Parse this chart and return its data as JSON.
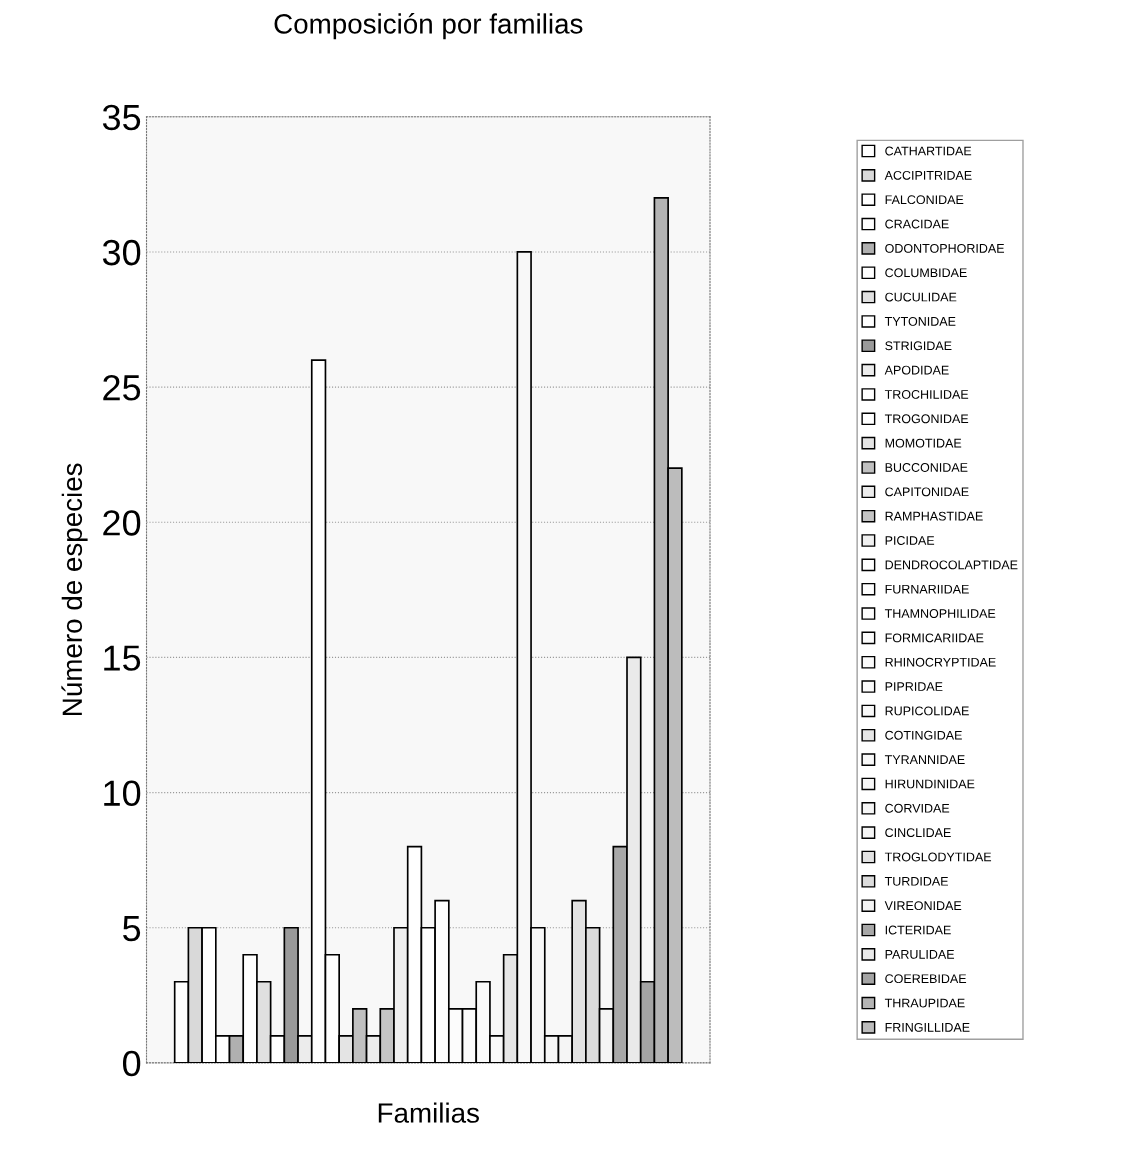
{
  "chart_data": {
    "type": "bar",
    "title": "Composición por familias",
    "xlabel": "Familias",
    "ylabel": "Número de especies",
    "categories": [
      null
    ],
    "ylim": [
      0,
      35
    ],
    "yticks": [
      0,
      5,
      10,
      15,
      20,
      25,
      30,
      35
    ],
    "grid": "y",
    "legend": "right",
    "series": [
      {
        "name": "CATHARTIDAE",
        "color": "#ffffff",
        "values": [
          3
        ]
      },
      {
        "name": "ACCIPITRIDAE",
        "color": "#d9d9d9",
        "values": [
          5
        ]
      },
      {
        "name": "FALCONIDAE",
        "color": "#ffffff",
        "values": [
          5
        ]
      },
      {
        "name": "CRACIDAE",
        "color": "#ffffff",
        "values": [
          1
        ]
      },
      {
        "name": "ODONTOPHORIDAE",
        "color": "#b0b0b0",
        "values": [
          1
        ]
      },
      {
        "name": "COLUMBIDAE",
        "color": "#ffffff",
        "values": [
          4
        ]
      },
      {
        "name": "CUCULIDAE",
        "color": "#e0e0e0",
        "values": [
          3
        ]
      },
      {
        "name": "TYTONIDAE",
        "color": "#ffffff",
        "values": [
          1
        ]
      },
      {
        "name": "STRIGIDAE",
        "color": "#9a9a9a",
        "values": [
          5
        ]
      },
      {
        "name": "APODIDAE",
        "color": "#ececec",
        "values": [
          1
        ]
      },
      {
        "name": "TROCHILIDAE",
        "color": "#ffffff",
        "values": [
          26
        ]
      },
      {
        "name": "TROGONIDAE",
        "color": "#ffffff",
        "values": [
          4
        ]
      },
      {
        "name": "MOMOTIDAE",
        "color": "#e4e4e4",
        "values": [
          1
        ]
      },
      {
        "name": "BUCCONIDAE",
        "color": "#c0c0c0",
        "values": [
          2
        ]
      },
      {
        "name": "CAPITONIDAE",
        "color": "#ececec",
        "values": [
          1
        ]
      },
      {
        "name": "RAMPHASTIDAE",
        "color": "#c4c4c4",
        "values": [
          2
        ]
      },
      {
        "name": "PICIDAE",
        "color": "#f0f0f0",
        "values": [
          5
        ]
      },
      {
        "name": "DENDROCOLAPTIDAE",
        "color": "#ffffff",
        "values": [
          8
        ]
      },
      {
        "name": "FURNARIIDAE",
        "color": "#fefefe",
        "values": [
          5
        ]
      },
      {
        "name": "THAMNOPHILIDAE",
        "color": "#fdfdfd",
        "values": [
          6
        ]
      },
      {
        "name": "FORMICARIIDAE",
        "color": "#fcfcfc",
        "values": [
          2
        ]
      },
      {
        "name": "RHINOCRYPTIDAE",
        "color": "#fbfbfb",
        "values": [
          2
        ]
      },
      {
        "name": "PIPRIDAE",
        "color": "#fafafa",
        "values": [
          3
        ]
      },
      {
        "name": "RUPICOLIDAE",
        "color": "#f9f9f9",
        "values": [
          1
        ]
      },
      {
        "name": "COTINGIDAE",
        "color": "#e6e6e6",
        "values": [
          4
        ]
      },
      {
        "name": "TYRANNIDAE",
        "color": "#f8f8f8",
        "values": [
          30
        ]
      },
      {
        "name": "HIRUNDINIDAE",
        "color": "#f7f7f7",
        "values": [
          5
        ]
      },
      {
        "name": "CORVIDAE",
        "color": "#f6f6f6",
        "values": [
          1
        ]
      },
      {
        "name": "CINCLIDAE",
        "color": "#f5f5f5",
        "values": [
          1
        ]
      },
      {
        "name": "TROGLODYTIDAE",
        "color": "#e2e2e2",
        "values": [
          6
        ]
      },
      {
        "name": "TURDIDAE",
        "color": "#dcdcdc",
        "values": [
          5
        ]
      },
      {
        "name": "VIREONIDAE",
        "color": "#f4f4f4",
        "values": [
          2
        ]
      },
      {
        "name": "ICTERIDAE",
        "color": "#a8a8a8",
        "values": [
          8
        ]
      },
      {
        "name": "PARULIDAE",
        "color": "#eaeaea",
        "values": [
          15
        ]
      },
      {
        "name": "COEREBIDAE",
        "color": "#a4a4a4",
        "values": [
          3
        ]
      },
      {
        "name": "THRAUPIDAE",
        "color": "#b4b4b4",
        "values": [
          32
        ]
      },
      {
        "name": "FRINGILLIDAE",
        "color": "#bcbcbc",
        "values": [
          22
        ]
      }
    ]
  }
}
